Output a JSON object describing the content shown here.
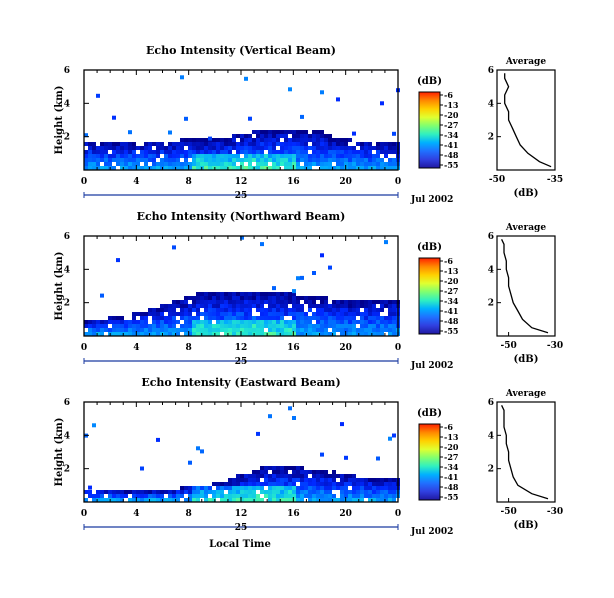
{
  "figure": {
    "x_axis_label": "Local Time",
    "date_day": "25",
    "date_label": "Jul 2002",
    "avg_title": "Average",
    "avg_xlabel": "(dB)"
  },
  "colorbar": {
    "unit": "(dB)",
    "ticks": [
      "-6",
      "-13",
      "-20",
      "-27",
      "-34",
      "-41",
      "-48",
      "-55"
    ],
    "colors": [
      "#ff2000",
      "#ff8800",
      "#ffd000",
      "#e0ff30",
      "#80ff70",
      "#30f0c0",
      "#00b0ff",
      "#2070ff",
      "#3040e0",
      "#2018a0"
    ]
  },
  "chart_data": [
    {
      "type": "heatmap",
      "title": "Echo Intensity (Vertical Beam)",
      "ylabel": "Height (km)",
      "xlabel": "",
      "x_ticks": [
        "0",
        "4",
        "8",
        "12",
        "16",
        "20",
        "0"
      ],
      "y_ticks": [
        "6",
        "4",
        "2"
      ],
      "xlim": [
        0,
        24
      ],
      "ylim": [
        0,
        6
      ],
      "clim": [
        -55,
        -6
      ],
      "colormap": "jet",
      "echo_top_km": [
        1.6,
        1.6,
        1.6,
        1.6,
        1.6,
        1.6,
        1.6,
        1.7,
        1.7,
        1.7,
        1.8,
        1.9,
        2.1,
        2.2,
        2.3,
        2.4,
        2.4,
        2.3,
        2.2,
        1.9,
        1.7,
        1.6,
        1.6,
        1.6,
        1.6
      ],
      "average_profile": {
        "title": "Average",
        "xlabel": "(dB)",
        "x_ticks": [
          "-50",
          "-35"
        ],
        "y_ticks": [
          "6",
          "4",
          "2"
        ],
        "xlim": [
          -50,
          -35
        ],
        "ylim": [
          0,
          6
        ],
        "height_km": [
          0.2,
          0.5,
          1.0,
          1.5,
          2.0,
          2.5,
          3.0,
          3.5,
          4.0,
          4.5,
          5.0,
          5.5,
          5.8
        ],
        "value_db": [
          -36,
          -39,
          -42,
          -44,
          -45,
          -46,
          -47,
          -47,
          -48,
          -48,
          -47,
          -48,
          -48
        ]
      }
    },
    {
      "type": "heatmap",
      "title": "Echo Intensity (Northward Beam)",
      "ylabel": "Height (km)",
      "xlabel": "",
      "x_ticks": [
        "0",
        "4",
        "8",
        "12",
        "16",
        "20",
        "0"
      ],
      "y_ticks": [
        "6",
        "4",
        "2"
      ],
      "xlim": [
        0,
        24
      ],
      "ylim": [
        0,
        6
      ],
      "clim": [
        -55,
        -6
      ],
      "colormap": "jet",
      "echo_top_km": [
        0.8,
        0.9,
        1.0,
        1.1,
        1.3,
        1.5,
        1.8,
        2.0,
        2.3,
        2.5,
        2.6,
        2.6,
        2.6,
        2.6,
        2.5,
        2.5,
        2.4,
        2.3,
        2.2,
        2.1,
        2.0,
        2.0,
        2.0,
        2.0,
        2.0
      ],
      "average_profile": {
        "title": "Average",
        "xlabel": "(dB)",
        "x_ticks": [
          "-50",
          "-30"
        ],
        "y_ticks": [
          "6",
          "4",
          "2"
        ],
        "xlim": [
          -55,
          -30
        ],
        "ylim": [
          0,
          6
        ],
        "height_km": [
          0.2,
          0.5,
          1.0,
          1.5,
          2.0,
          2.5,
          3.0,
          3.5,
          4.0,
          4.5,
          5.0,
          5.5,
          5.8
        ],
        "value_db": [
          -33,
          -40,
          -44,
          -46,
          -48,
          -49,
          -50,
          -50,
          -51,
          -51,
          -52,
          -52,
          -53
        ]
      }
    },
    {
      "type": "heatmap",
      "title": "Echo Intensity (Eastward Beam)",
      "ylabel": "Height (km)",
      "xlabel": "Local Time",
      "x_ticks": [
        "0",
        "4",
        "8",
        "12",
        "16",
        "20",
        "0"
      ],
      "y_ticks": [
        "6",
        "4",
        "2"
      ],
      "xlim": [
        0,
        24
      ],
      "ylim": [
        0,
        6
      ],
      "clim": [
        -55,
        -6
      ],
      "colormap": "jet",
      "echo_top_km": [
        0.7,
        0.6,
        0.6,
        0.6,
        0.6,
        0.6,
        0.6,
        0.7,
        0.8,
        0.9,
        1.0,
        1.2,
        1.6,
        1.9,
        2.0,
        2.1,
        2.0,
        1.9,
        1.8,
        1.7,
        1.5,
        1.4,
        1.3,
        1.3,
        1.3
      ],
      "average_profile": {
        "title": "Average",
        "xlabel": "(dB)",
        "x_ticks": [
          "-50",
          "-30"
        ],
        "y_ticks": [
          "6",
          "4",
          "2"
        ],
        "xlim": [
          -55,
          -30
        ],
        "ylim": [
          0,
          6
        ],
        "height_km": [
          0.2,
          0.5,
          1.0,
          1.5,
          2.0,
          2.5,
          3.0,
          3.5,
          4.0,
          4.5,
          5.0,
          5.5,
          5.8
        ],
        "value_db": [
          -33,
          -40,
          -46,
          -48,
          -49,
          -50,
          -50,
          -51,
          -51,
          -52,
          -52,
          -52,
          -53
        ]
      }
    }
  ]
}
